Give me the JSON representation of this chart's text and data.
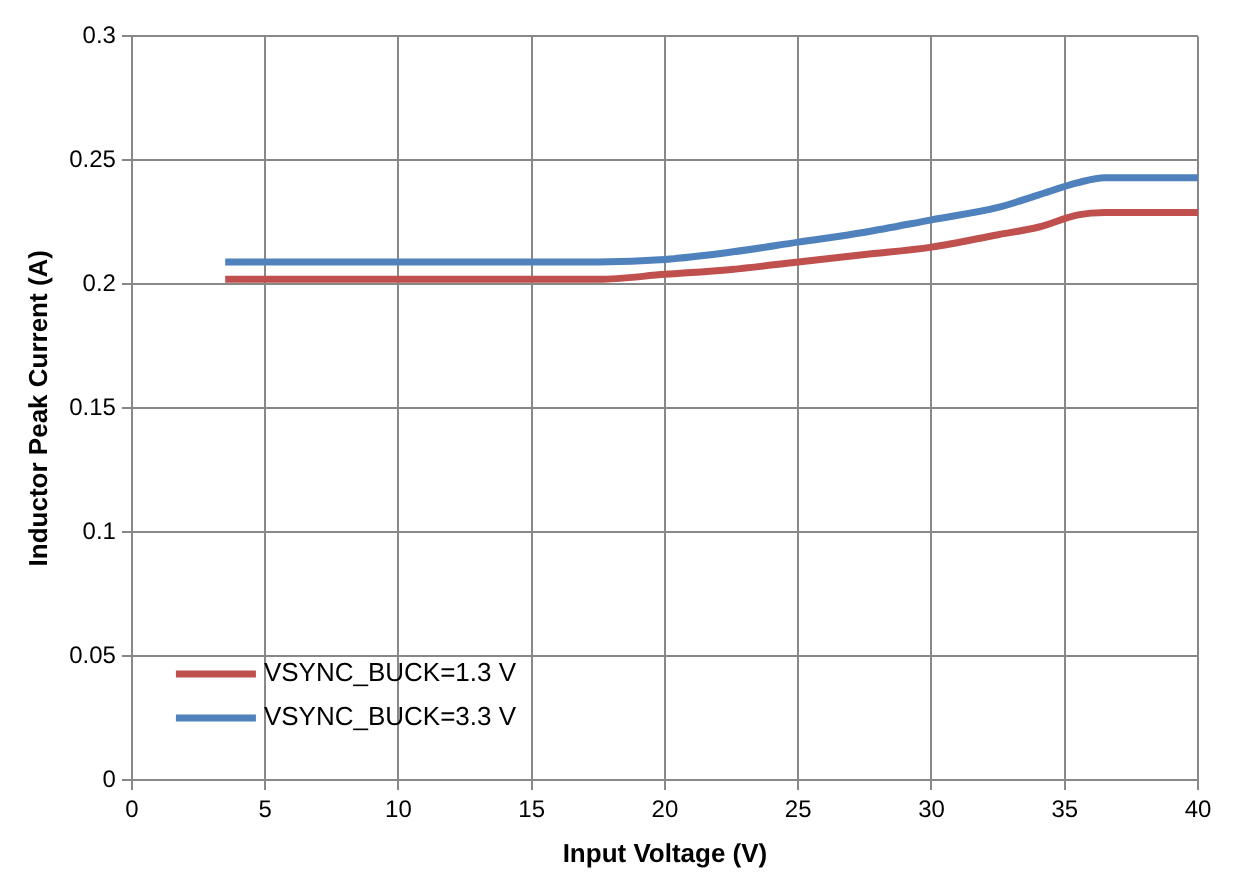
{
  "chart_data": {
    "type": "line",
    "xlabel": "Input Voltage (V)",
    "ylabel": "Inductor Peak Current (A)",
    "xlim": [
      0,
      40
    ],
    "xticks": [
      0,
      5,
      10,
      15,
      20,
      25,
      30,
      35,
      40
    ],
    "ylim": [
      0,
      0.3
    ],
    "yticks": [
      0,
      0.05,
      0.1,
      0.15,
      0.2,
      0.25,
      0.3
    ],
    "grid": true,
    "legend": "bottom left",
    "marker": "none",
    "line_style": "solid",
    "series": [
      {
        "name": "VSYNC_BUCK=1.3 V",
        "color": "#c0504d",
        "x": [
          3.5,
          17.5,
          20,
          22.5,
          25,
          27.5,
          30,
          32.5,
          34,
          35.5,
          36.5,
          40
        ],
        "values": [
          0.202,
          0.202,
          0.204,
          0.206,
          0.209,
          0.212,
          0.215,
          0.22,
          0.223,
          0.228,
          0.229,
          0.229
        ]
      },
      {
        "name": "VSYNC_BUCK=3.3 V",
        "color": "#4f81bd",
        "x": [
          3.5,
          17.5,
          20,
          22.5,
          25,
          27.5,
          30,
          32.5,
          34,
          35.5,
          36.5,
          40
        ],
        "values": [
          0.209,
          0.209,
          0.21,
          0.213,
          0.217,
          0.221,
          0.226,
          0.231,
          0.236,
          0.241,
          0.243,
          0.243
        ]
      }
    ]
  }
}
